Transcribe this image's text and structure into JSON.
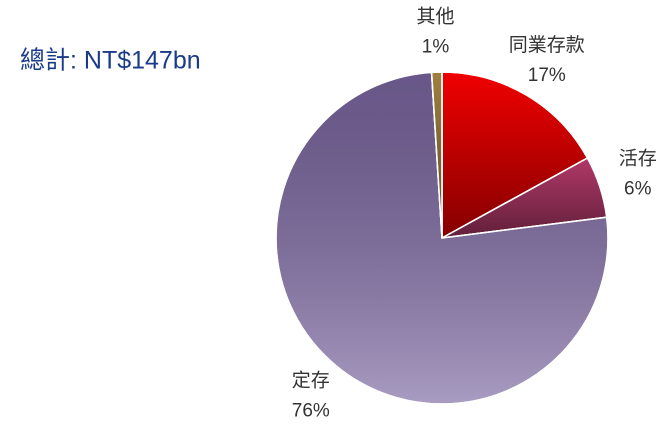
{
  "chart_data": {
    "type": "pie",
    "title": "總計: NT$147bn",
    "categories": [
      "同業存款",
      "活存",
      "定存",
      "其他"
    ],
    "values": [
      17,
      6,
      76,
      1
    ],
    "value_labels": [
      "17%",
      "6%",
      "76%",
      "1%"
    ],
    "colors": [
      "#f00000",
      "#b03868",
      "#7a66a0",
      "#a08040"
    ]
  }
}
